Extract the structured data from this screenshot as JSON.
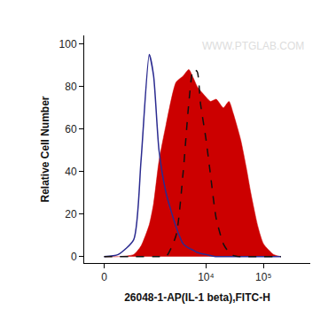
{
  "chart_data": {
    "type": "line",
    "xlabel": "26048-1-AP(IL-1 beta),FITC-H",
    "ylabel": "Relative Cell Number",
    "watermark": "WWW.PTGLAB.COM",
    "x": [
      0,
      200,
      500,
      700,
      1000,
      1200,
      1500,
      2000,
      3000,
      4000,
      5000,
      6000,
      7000,
      8000,
      10000,
      12000,
      15000,
      20000,
      25000,
      30000,
      40000,
      50000,
      60000,
      80000,
      100000,
      150000,
      200000
    ],
    "series": [
      {
        "type": "area",
        "color": "#cc0000",
        "line_style": "solid",
        "values": [
          0,
          0,
          1,
          5,
          15,
          25,
          45,
          62,
          82,
          85,
          88,
          84,
          80,
          78,
          75,
          73,
          74,
          70,
          73,
          67,
          55,
          42,
          30,
          14,
          6,
          1,
          0
        ]
      },
      {
        "type": "line",
        "color": "#2b2b90",
        "line_style": "solid",
        "values": [
          0,
          1,
          8,
          45,
          95,
          85,
          50,
          30,
          14,
          6,
          4,
          3,
          2,
          1.5,
          1,
          0.5,
          0,
          0,
          0,
          0,
          0,
          0,
          0,
          0,
          0,
          0,
          0
        ]
      },
      {
        "type": "line",
        "color": "#111111",
        "line_style": "dashed",
        "values": [
          0,
          0,
          0,
          0,
          0,
          0,
          0,
          0,
          10,
          40,
          72,
          88,
          87,
          72,
          55,
          38,
          18,
          6,
          2,
          0.5,
          0,
          0,
          0,
          0,
          0,
          0,
          0
        ]
      }
    ],
    "xlim": [
      -300,
      650000
    ],
    "xticks": [
      0,
      {
        "value": 10000,
        "label": "10⁴"
      },
      {
        "value": 100000,
        "label": "10⁵"
      }
    ],
    "ylim": [
      -3,
      104
    ],
    "yticks": [
      0,
      20,
      40,
      60,
      80,
      100
    ],
    "grid": false
  }
}
